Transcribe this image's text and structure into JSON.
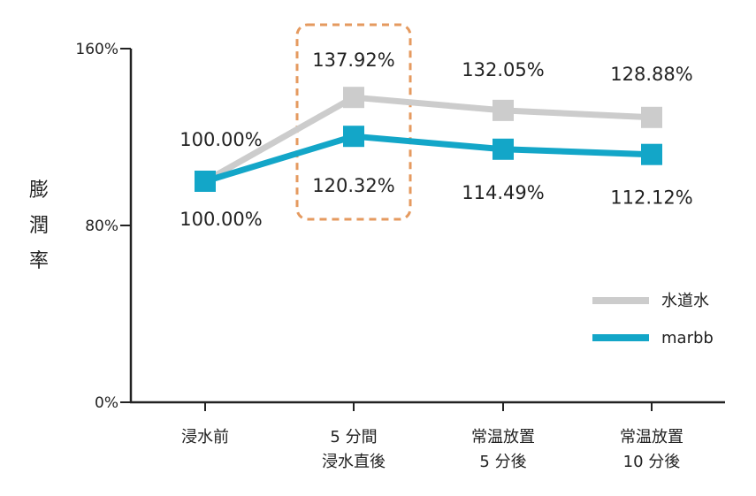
{
  "chart_data": {
    "type": "line",
    "ylabel": "膨潤率",
    "ylim": [
      0,
      160
    ],
    "y_ticks": [
      {
        "value": 0,
        "label": "0%"
      },
      {
        "value": 80,
        "label": "80%"
      },
      {
        "value": 160,
        "label": "160%"
      }
    ],
    "categories": [
      [
        "浸水前"
      ],
      [
        "5 分間",
        "浸水直後"
      ],
      [
        "常温放置",
        "5 分後"
      ],
      [
        "常温放置",
        "10 分後"
      ]
    ],
    "series": [
      {
        "name": "水道水",
        "color": "#cccccc",
        "values": [
          100.0,
          137.92,
          132.05,
          128.88
        ],
        "labels": [
          "100.00%",
          "137.92%",
          "132.05%",
          "128.88%"
        ]
      },
      {
        "name": "marbb",
        "color": "#13a6c8",
        "values": [
          100.0,
          120.32,
          114.49,
          112.12
        ],
        "labels": [
          "100.00%",
          "120.32%",
          "114.49%",
          "112.12%"
        ]
      }
    ],
    "highlight": {
      "category_index": 1,
      "color": "#e59a5f",
      "style": "dashed"
    },
    "legend_position": "bottom-right",
    "grid": false
  }
}
